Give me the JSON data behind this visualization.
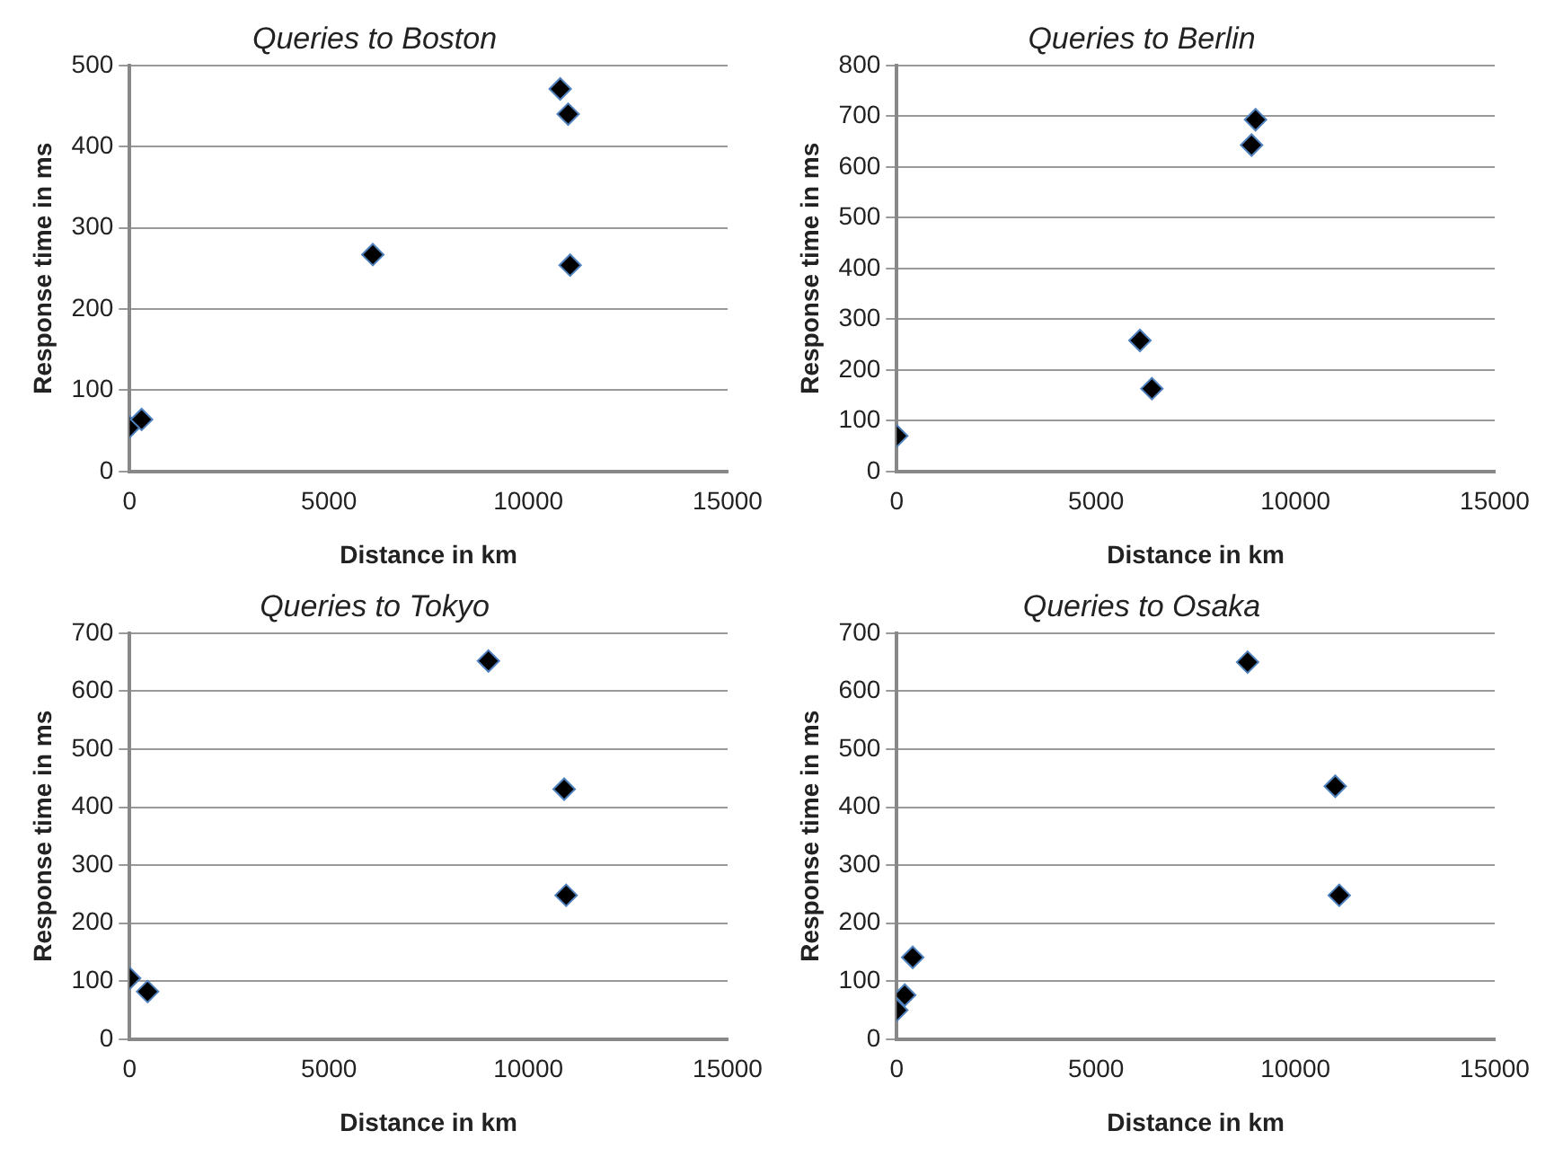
{
  "chart_data": [
    {
      "type": "scatter",
      "title": "Queries to Boston",
      "xlabel": "Distance in km",
      "ylabel": "Response time in ms",
      "x": [
        0,
        300,
        6100,
        10800,
        11000,
        11050
      ],
      "values": [
        55,
        64,
        267,
        471,
        440,
        254
      ],
      "color": "#000000",
      "xlim": [
        0,
        15000
      ],
      "xticks": [
        0,
        5000,
        10000,
        15000
      ],
      "ylim": [
        0,
        500
      ],
      "yticks": [
        0,
        100,
        200,
        300,
        400,
        500
      ],
      "grid": "y",
      "marker": "diamond",
      "legend": false
    },
    {
      "type": "scatter",
      "title": "Queries to Berlin",
      "xlabel": "Distance in km",
      "ylabel": "Response time in ms",
      "x": [
        0,
        6100,
        6400,
        8900,
        9000
      ],
      "values": [
        70,
        258,
        163,
        643,
        693
      ],
      "color": "#000000",
      "xlim": [
        0,
        15000
      ],
      "xticks": [
        0,
        5000,
        10000,
        15000
      ],
      "ylim": [
        0,
        800
      ],
      "yticks": [
        0,
        100,
        200,
        300,
        400,
        500,
        600,
        700,
        800
      ],
      "grid": "y",
      "marker": "diamond",
      "legend": false
    },
    {
      "type": "scatter",
      "title": "Queries to Tokyo",
      "xlabel": "Distance in km",
      "ylabel": "Response time in ms",
      "x": [
        0,
        450,
        9000,
        10900,
        10950
      ],
      "values": [
        105,
        82,
        652,
        431,
        248
      ],
      "color": "#000000",
      "xlim": [
        0,
        15000
      ],
      "xticks": [
        0,
        5000,
        10000,
        15000
      ],
      "ylim": [
        0,
        700
      ],
      "yticks": [
        0,
        100,
        200,
        300,
        400,
        500,
        600,
        700
      ],
      "grid": "y",
      "marker": "diamond",
      "legend": false
    },
    {
      "type": "scatter",
      "title": "Queries to Osaka",
      "xlabel": "Distance in km",
      "ylabel": "Response time in ms",
      "x": [
        0,
        200,
        400,
        8800,
        11000,
        11100
      ],
      "values": [
        50,
        76,
        141,
        650,
        436,
        248
      ],
      "color": "#000000",
      "xlim": [
        0,
        15000
      ],
      "xticks": [
        0,
        5000,
        10000,
        15000
      ],
      "ylim": [
        0,
        700
      ],
      "yticks": [
        0,
        100,
        200,
        300,
        400,
        500,
        600,
        700
      ],
      "grid": "y",
      "marker": "diamond",
      "legend": false
    }
  ]
}
